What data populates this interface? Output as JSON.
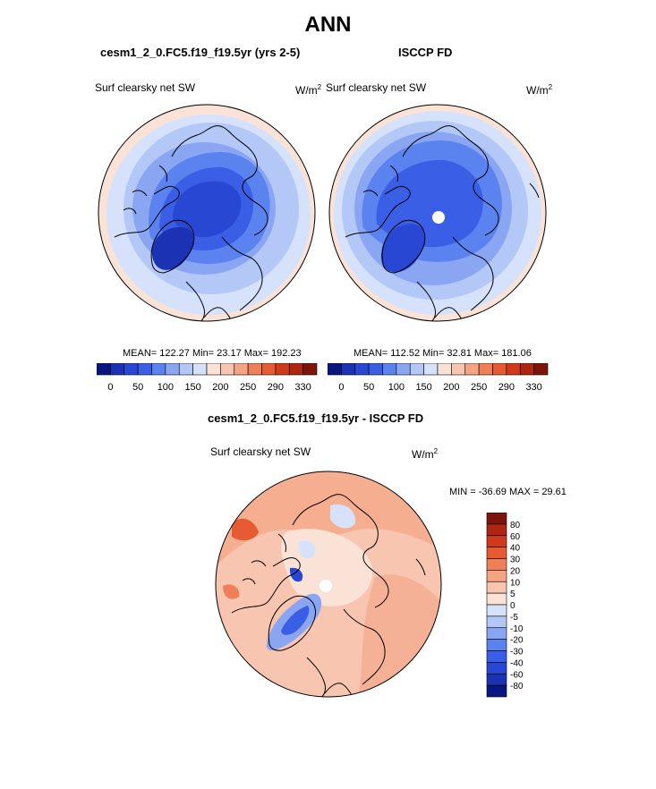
{
  "figure": {
    "title": "ANN",
    "panels": [
      {
        "title": "cesm1_2_0.FC5.f19_f19.5yr (yrs 2-5)",
        "left_label": "Surf clearsky net SW",
        "units": "W/m",
        "units_sup": "2",
        "stats": "MEAN= 122.27  Min=  23.17  Max= 192.23"
      },
      {
        "title": "ISCCP FD",
        "left_label": "Surf clearsky net SW",
        "units": "W/m",
        "units_sup": "2",
        "stats": "MEAN= 112.52  Min=  32.81  Max= 181.06"
      },
      {
        "title": "cesm1_2_0.FC5.f19_f19.5yr - ISCCP FD",
        "left_label": "Surf clearsky net SW",
        "units": "W/m",
        "units_sup": "2",
        "stats": "MIN = -36.69 MAX =  29.61"
      }
    ],
    "colors": {
      "abs_scale": [
        "#0a1680",
        "#1c32b4",
        "#2847d2",
        "#3a5fe6",
        "#5a83ef",
        "#8aa6f3",
        "#b3c8f7",
        "#d6e2fb",
        "#fbe2d6",
        "#f8c6b0",
        "#f4a483",
        "#ee7f57",
        "#e65b31",
        "#cf3b1a",
        "#ad2612",
        "#7f140a"
      ],
      "diff_scale": [
        "#0a1680",
        "#1c32b4",
        "#2847d2",
        "#3a5fe6",
        "#5a83ef",
        "#8aa6f3",
        "#b3c8f7",
        "#d6e2fb",
        "#fbe2d6",
        "#f8c6b0",
        "#f4a483",
        "#ee7f57",
        "#e65b31",
        "#cf3b1a",
        "#ad2612",
        "#7f140a"
      ]
    }
  },
  "chart_data": [
    {
      "type": "heatmap",
      "projection": "north polar stereographic",
      "title": "cesm1_2_0.FC5.f19_f19.5yr (yrs 2-5)",
      "variable": "Surf clearsky net SW",
      "units": "W/m2",
      "mean": 122.27,
      "min": 23.17,
      "max": 192.23,
      "colorbar_ticks": [
        "0",
        "50",
        "100",
        "150",
        "200",
        "250",
        "290",
        "330"
      ]
    },
    {
      "type": "heatmap",
      "projection": "north polar stereographic",
      "title": "ISCCP FD",
      "variable": "Surf clearsky net SW",
      "units": "W/m2",
      "mean": 112.52,
      "min": 32.81,
      "max": 181.06,
      "colorbar_ticks": [
        "0",
        "50",
        "100",
        "150",
        "200",
        "250",
        "290",
        "330"
      ]
    },
    {
      "type": "heatmap",
      "projection": "north polar stereographic",
      "title": "cesm1_2_0.FC5.f19_f19.5yr - ISCCP FD",
      "variable": "Surf clearsky net SW",
      "units": "W/m2",
      "min": -36.69,
      "max": 29.61,
      "colorbar_levels": [
        "80",
        "60",
        "40",
        "30",
        "20",
        "10",
        "5",
        "0",
        "-5",
        "-10",
        "-20",
        "-30",
        "-40",
        "-60",
        "-80"
      ]
    }
  ]
}
